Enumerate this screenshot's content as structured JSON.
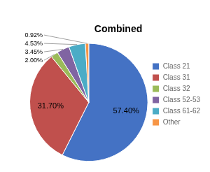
{
  "chart_data": {
    "type": "pie",
    "title": "Combined",
    "categories": [
      "Class 21",
      "Class 31",
      "Class 32",
      "Class 52-53",
      "Class 61-62",
      "Other"
    ],
    "values": [
      57.4,
      31.7,
      2.0,
      3.45,
      4.53,
      0.92
    ],
    "value_labels": [
      "57.40%",
      "31.70%",
      "2.00%",
      "3.45%",
      "4.53%",
      "0.92%"
    ],
    "colors": [
      "#4472C4",
      "#C0504D",
      "#9BBB59",
      "#8064A2",
      "#4BACC6",
      "#F79646"
    ],
    "data_labels": true,
    "legend": "right"
  }
}
